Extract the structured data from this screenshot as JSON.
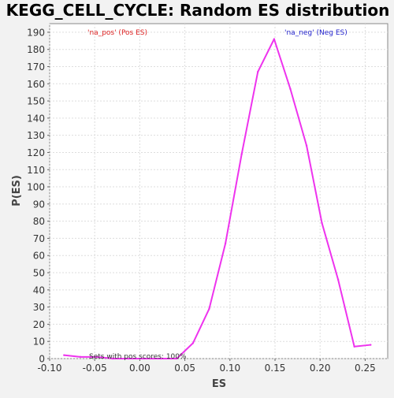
{
  "chart_data": {
    "type": "line",
    "title": "KEGG_CELL_CYCLE: Random ES distribution",
    "xlabel": "ES",
    "ylabel": "P(ES)",
    "xlim": [
      -0.1,
      0.275
    ],
    "ylim": [
      0,
      195
    ],
    "x_ticks": [
      -0.1,
      -0.05,
      0.0,
      0.05,
      0.1,
      0.15,
      0.2,
      0.25
    ],
    "x_tick_labels": [
      "-0.10",
      "-0.05",
      "0.00",
      "0.05",
      "0.10",
      "0.15",
      "0.20",
      "0.25"
    ],
    "y_ticks": [
      0,
      10,
      20,
      30,
      40,
      50,
      60,
      70,
      80,
      90,
      100,
      110,
      120,
      130,
      140,
      150,
      160,
      170,
      180,
      190
    ],
    "grid": true,
    "series": [
      {
        "color": "#ee33ee",
        "x": [
          -0.084,
          -0.066,
          -0.048,
          -0.03,
          -0.012,
          0.005,
          0.023,
          0.041,
          0.059,
          0.077,
          0.095,
          0.113,
          0.131,
          0.149,
          0.167,
          0.185,
          0.202,
          0.22,
          0.238,
          0.256
        ],
        "y": [
          2,
          1,
          1,
          0,
          0,
          0,
          0,
          0,
          9,
          29,
          67,
          119,
          167,
          186,
          157,
          124,
          79,
          46,
          7,
          8
        ]
      }
    ],
    "annotations": [
      {
        "text": "'na_pos' (Pos ES)",
        "color": "#dd2222"
      },
      {
        "text": "'na_neg' (Neg ES)",
        "color": "#2222cc"
      },
      {
        "text": "Sets with pos scores: 100%",
        "color": "#333333"
      }
    ]
  }
}
